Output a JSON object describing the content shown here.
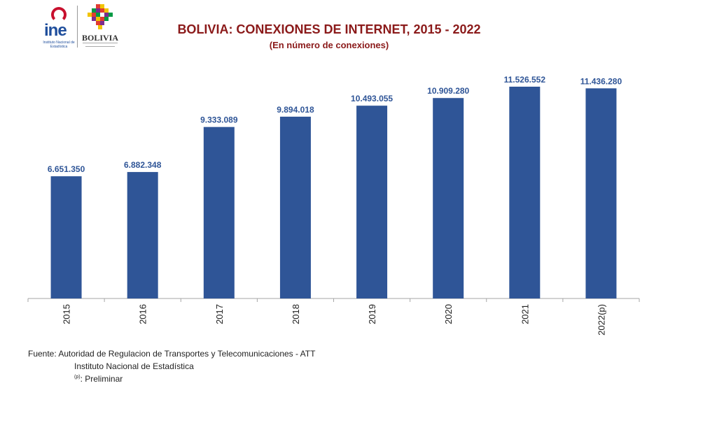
{
  "logos": {
    "ine_text": "ine",
    "ine_subtitle": "Instituto Nacional de Estadística",
    "bolivia_text": "BOLIVIA"
  },
  "chart_data": {
    "type": "bar",
    "title": "BOLIVIA: CONEXIONES DE INTERNET, 2015 - 2022",
    "subtitle": "(En número de conexiones)",
    "categories": [
      "2015",
      "2016",
      "2017",
      "2018",
      "2019",
      "2020",
      "2021",
      "2022(p)"
    ],
    "values": [
      6651350,
      6882348,
      9333089,
      9894018,
      10493055,
      10909280,
      11526552,
      11436280
    ],
    "data_labels": [
      "6.651.350",
      "6.882.348",
      "9.333.089",
      "9.894.018",
      "10.493.055",
      "10.909.280",
      "11.526.552",
      "11.436.280"
    ],
    "xlabel": "",
    "ylabel": "",
    "ylim": [
      0,
      12000000
    ],
    "grid": false,
    "bar_color": "#2f5597",
    "label_color": "#2f5597"
  },
  "footer": {
    "source": "Fuente: Autoridad de Regulacion de Transportes y Telecomunicaciones - ATT",
    "source2": "Instituto Nacional de Estadística",
    "note_sup": "(p)",
    "note_text": ": Preliminar"
  },
  "colors": {
    "title": "#8b1a1a",
    "ine_red": "#c8102e",
    "ine_blue": "#1f4e9c"
  }
}
